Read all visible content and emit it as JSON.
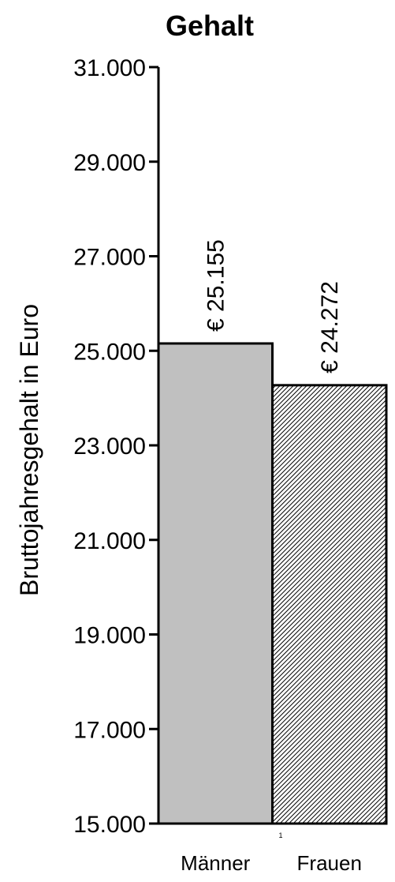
{
  "chart_data": {
    "type": "bar",
    "title": "Gehalt",
    "xlabel": "",
    "ylabel": "Bruttojahresgehalt in Euro",
    "categories": [
      "Männer",
      "Frauen"
    ],
    "values": [
      25155,
      24272
    ],
    "data_labels": [
      "€ 25.155",
      "€ 24.272"
    ],
    "ylim": [
      15000,
      31000
    ],
    "yticks": [
      15000,
      17000,
      19000,
      21000,
      23000,
      25000,
      27000,
      29000,
      31000
    ],
    "ytick_labels": [
      "15.000",
      "17.000",
      "19.000",
      "21.000",
      "23.000",
      "25.000",
      "27.000",
      "29.000",
      "31.000"
    ],
    "x_axis_mark": "1",
    "grid": false,
    "legend": "none",
    "bar_fills": [
      "#c0c0c0",
      "hatched"
    ]
  }
}
